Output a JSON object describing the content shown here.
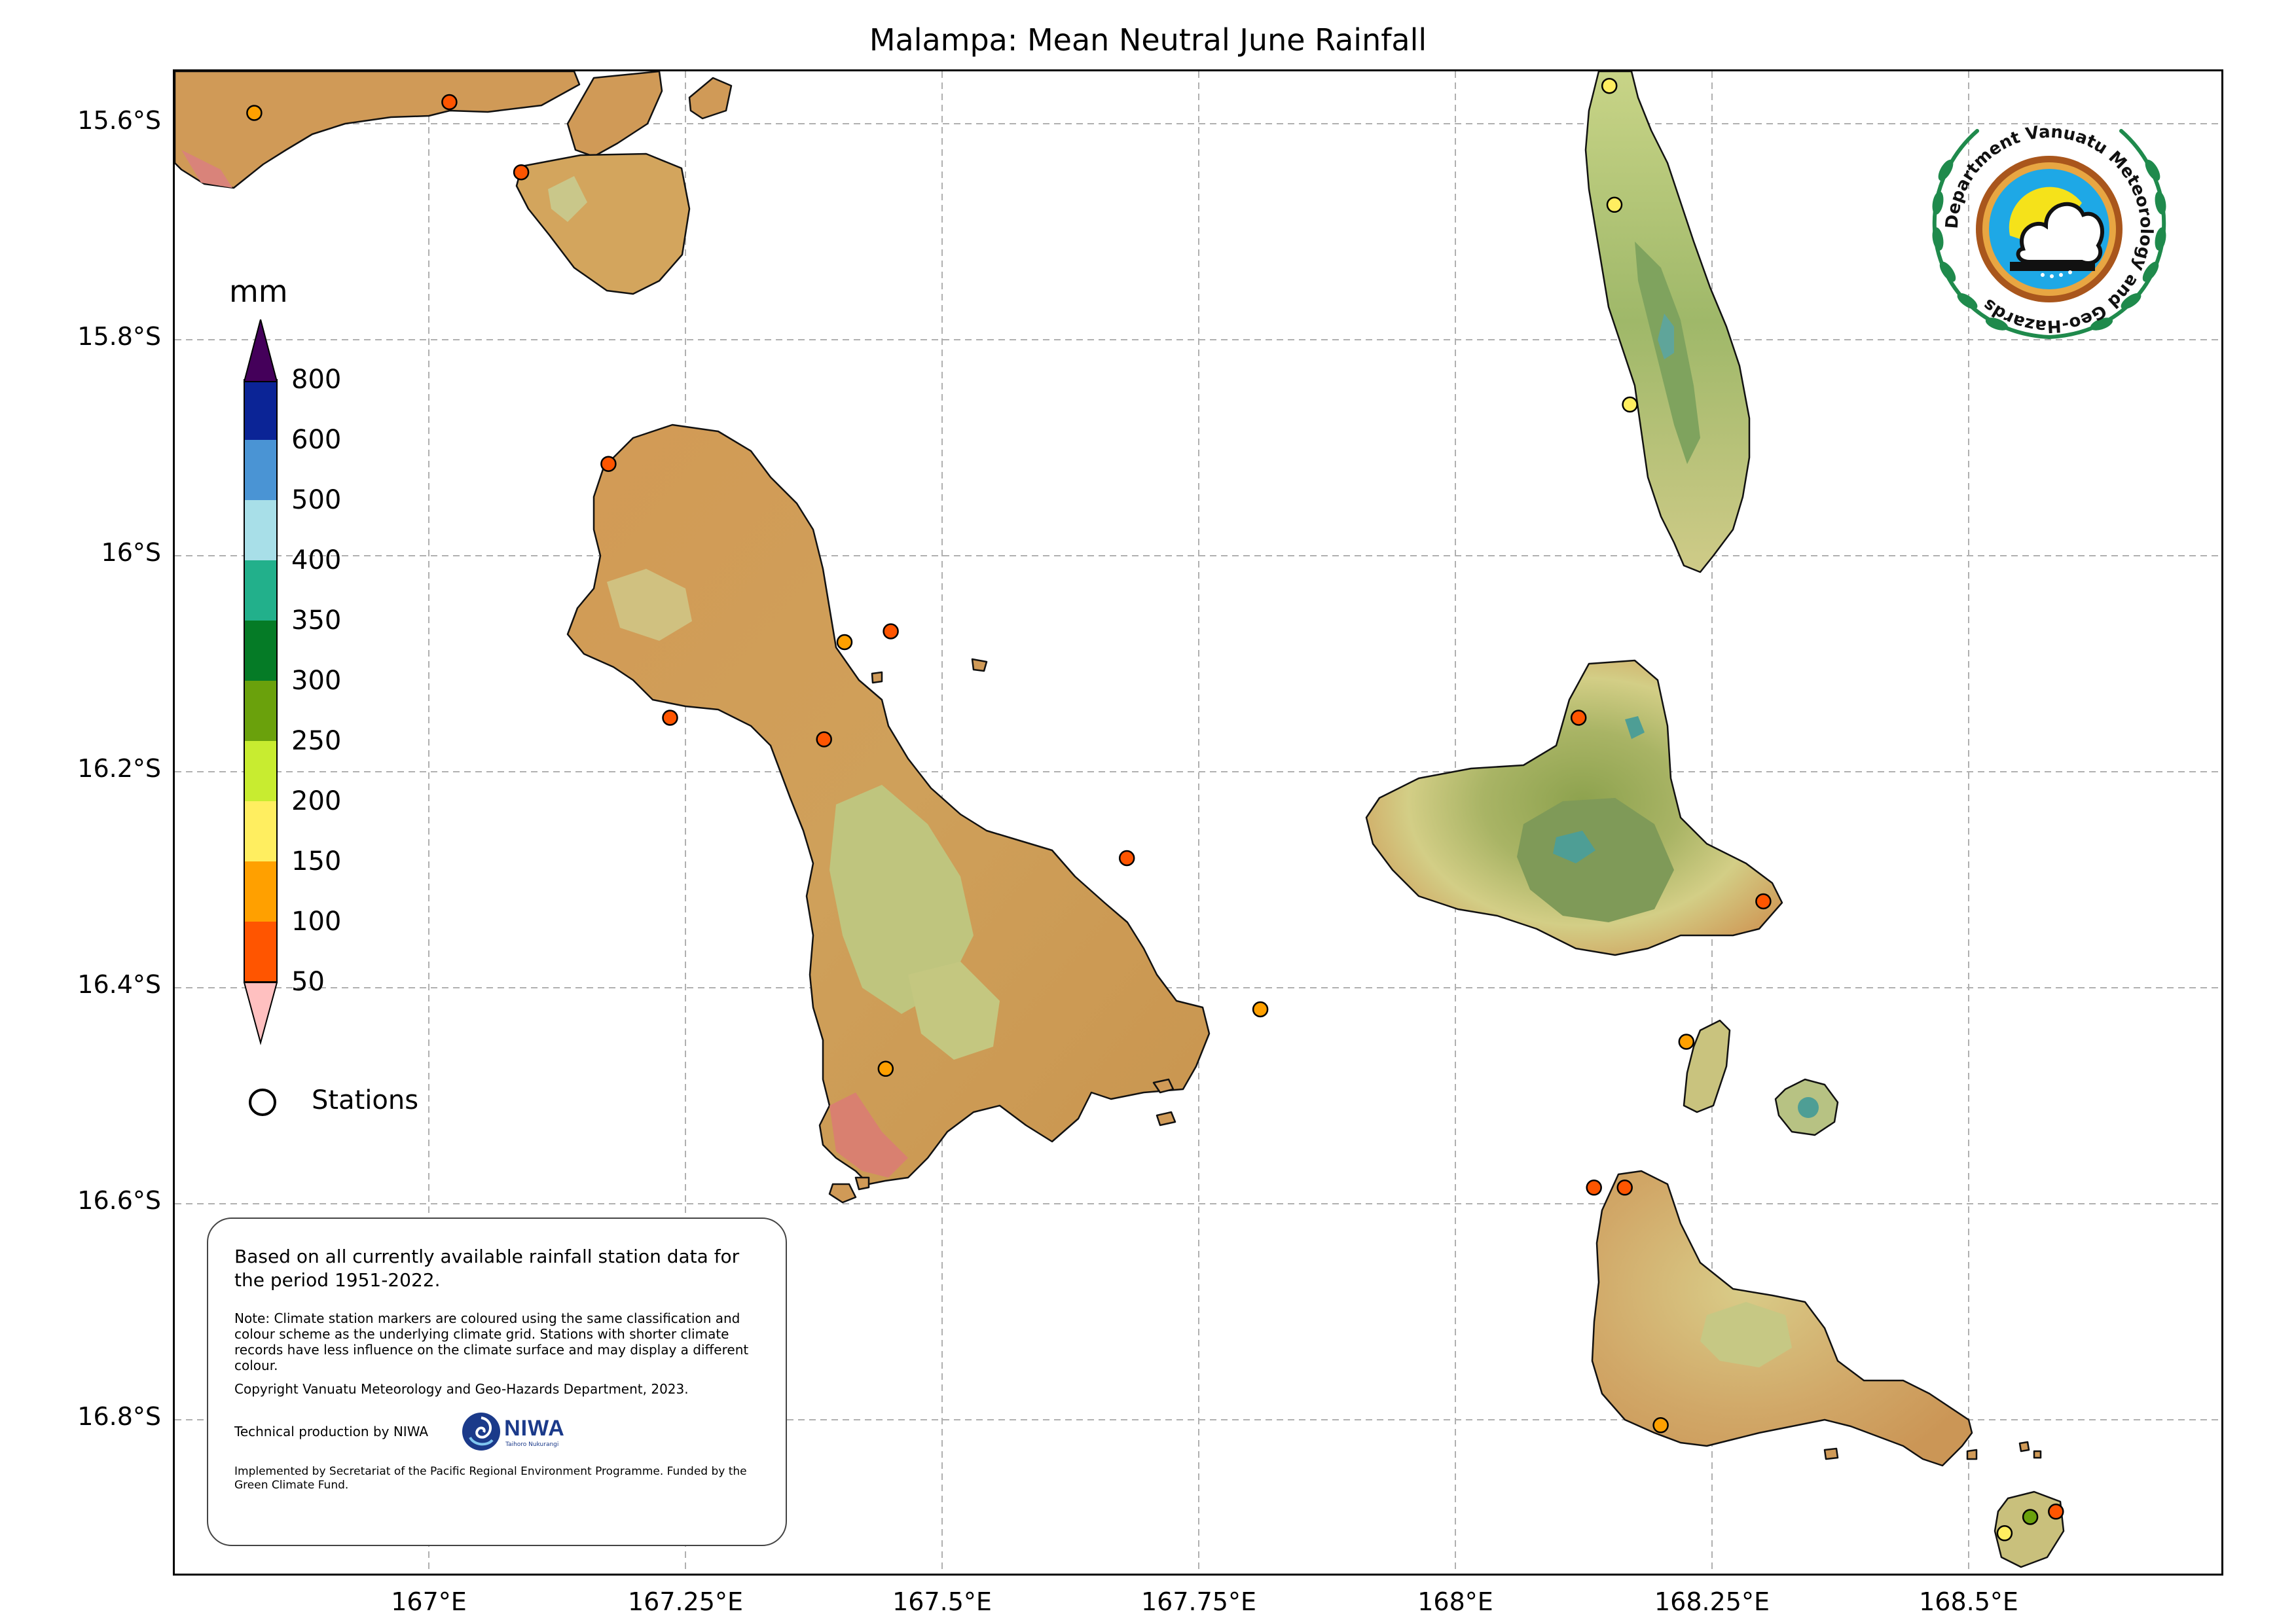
{
  "title": "Malampa: Mean Neutral June Rainfall",
  "axes": {
    "latitude_labels": [
      "15.6°S",
      "15.8°S",
      "16°S",
      "16.2°S",
      "16.4°S",
      "16.6°S",
      "16.8°S"
    ],
    "longitude_labels": [
      "167°E",
      "167.25°E",
      "167.5°E",
      "167.75°E",
      "168°E",
      "168.25°E",
      "168.5°E"
    ]
  },
  "legend": {
    "unit": "mm",
    "bins": [
      {
        "label": "50",
        "color": "#ff5500"
      },
      {
        "label": "100",
        "color": "#ffa000"
      },
      {
        "label": "150",
        "color": "#ffee60"
      },
      {
        "label": "200",
        "color": "#c8ec30"
      },
      {
        "label": "250",
        "color": "#6aa10c"
      },
      {
        "label": "300",
        "color": "#057b26"
      },
      {
        "label": "350",
        "color": "#22b08b"
      },
      {
        "label": "400",
        "color": "#a8dfe8"
      },
      {
        "label": "500",
        "color": "#4a94d4"
      },
      {
        "label": "600",
        "color": "#0b2496"
      },
      {
        "label": "800",
        "color": "#44005a"
      }
    ],
    "under_color": "#ffc0c0",
    "over_color": "#44005a",
    "stations_label": "Stations"
  },
  "info_box": {
    "main_text": "Based on all currently available rainfall station data for the period 1951-2022.",
    "note": "Note: Climate station markers are coloured using the same classification and colour scheme as the underlying climate grid. Stations with shorter climate records have less influence on the climate surface and may display a different colour.",
    "copyright": "Copyright Vanuatu Meteorology and Geo-Hazards Department, 2023.",
    "technical": "Technical production by NIWA",
    "niwa_logo_text": "NIWA",
    "niwa_tagline": "Taihoro Nukurangi",
    "implemented": "Implemented by Secretariat of the Pacific Regional Environment Programme. Funded by the Green Climate Fund."
  },
  "logo": {
    "text": "Department Vanuatu Meteorology and Geo-Hazards"
  },
  "stations": [
    {
      "lon": 166.83,
      "lat": -15.59,
      "color": "#ffa000"
    },
    {
      "lon": 167.02,
      "lat": -15.58,
      "color": "#ff5500"
    },
    {
      "lon": 167.09,
      "lat": -15.645,
      "color": "#ff5500"
    },
    {
      "lon": 167.175,
      "lat": -15.915,
      "color": "#ff5500"
    },
    {
      "lon": 167.405,
      "lat": -16.08,
      "color": "#ffa000"
    },
    {
      "lon": 167.45,
      "lat": -16.07,
      "color": "#ff5500"
    },
    {
      "lon": 167.235,
      "lat": -16.15,
      "color": "#ff5500"
    },
    {
      "lon": 167.385,
      "lat": -16.17,
      "color": "#ff5500"
    },
    {
      "lon": 167.68,
      "lat": -16.28,
      "color": "#ff5500"
    },
    {
      "lon": 167.81,
      "lat": -16.42,
      "color": "#ffa000"
    },
    {
      "lon": 167.445,
      "lat": -16.475,
      "color": "#ffa000"
    },
    {
      "lon": 168.15,
      "lat": -15.565,
      "color": "#ffee60"
    },
    {
      "lon": 168.155,
      "lat": -15.675,
      "color": "#ffee60"
    },
    {
      "lon": 168.17,
      "lat": -15.86,
      "color": "#ffee60"
    },
    {
      "lon": 168.12,
      "lat": -16.15,
      "color": "#ff5500"
    },
    {
      "lon": 168.3,
      "lat": -16.32,
      "color": "#ff5500"
    },
    {
      "lon": 168.225,
      "lat": -16.45,
      "color": "#ffa000"
    },
    {
      "lon": 168.135,
      "lat": -16.585,
      "color": "#ff5500"
    },
    {
      "lon": 168.165,
      "lat": -16.585,
      "color": "#ff5500"
    },
    {
      "lon": 168.2,
      "lat": -16.805,
      "color": "#ffa000"
    },
    {
      "lon": 168.535,
      "lat": -16.905,
      "color": "#ffee60"
    },
    {
      "lon": 168.56,
      "lat": -16.89,
      "color": "#6aa10c"
    },
    {
      "lon": 168.585,
      "lat": -16.885,
      "color": "#ff5500"
    }
  ]
}
